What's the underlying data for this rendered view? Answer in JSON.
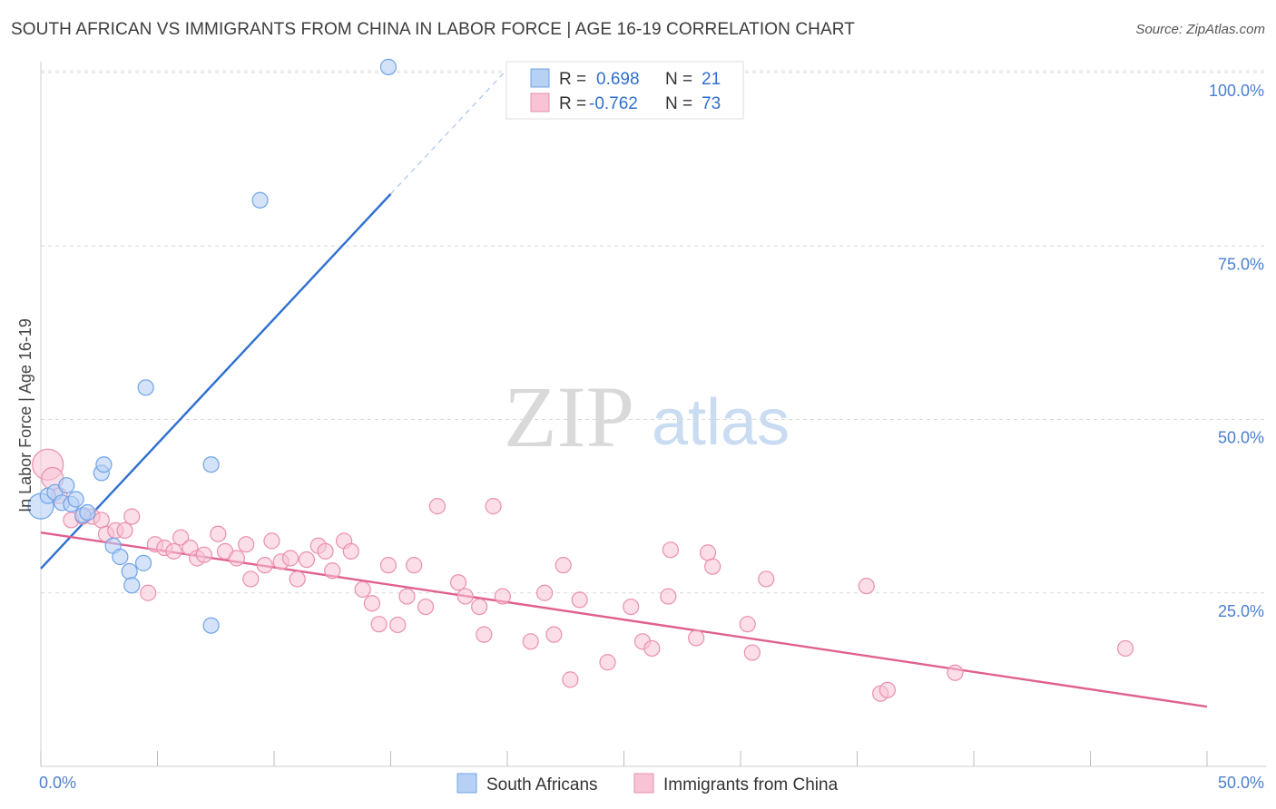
{
  "title": "SOUTH AFRICAN VS IMMIGRANTS FROM CHINA IN LABOR FORCE | AGE 16-19 CORRELATION CHART",
  "source": "Source: ZipAtlas.com",
  "watermark": {
    "zip": "ZIP",
    "atlas": "atlas"
  },
  "colors": {
    "blue": "#6fa3e8",
    "blue_fill": "#b7d1f5",
    "blue_line": "#2f6fd0",
    "pink": "#ea8fb0",
    "pink_fill": "#f7c3d5",
    "pink_line": "#e0608f"
  },
  "legend": {
    "series": [
      {
        "r_label": "R =",
        "r_value": "0.698",
        "n_label": "N =",
        "n_value": "21"
      },
      {
        "r_label": "R =",
        "r_value": "-0.762",
        "n_label": "N =",
        "n_value": "73"
      }
    ]
  },
  "chart_data": {
    "type": "scatter",
    "title": "SOUTH AFRICAN VS IMMIGRANTS FROM CHINA IN LABOR FORCE | AGE 16-19 CORRELATION CHART",
    "xlabel": "",
    "ylabel": "In Labor Force | Age 16-19",
    "xlim": [
      0,
      50
    ],
    "ylim": [
      0,
      100
    ],
    "x_ticks": [
      "0.0%",
      "50.0%"
    ],
    "y_ticks": [
      "100.0%",
      "75.0%",
      "50.0%",
      "25.0%"
    ],
    "y_tick_values": [
      100,
      75,
      50,
      25
    ],
    "series": [
      {
        "name": "South Africans",
        "color": "blue",
        "points": [
          [
            0.0,
            37.5
          ],
          [
            0.3,
            39.0
          ],
          [
            0.6,
            39.5
          ],
          [
            0.9,
            38.0
          ],
          [
            1.1,
            40.5
          ],
          [
            1.3,
            37.8
          ],
          [
            1.5,
            38.5
          ],
          [
            1.8,
            36.2
          ],
          [
            2.0,
            36.6
          ],
          [
            2.6,
            42.3
          ],
          [
            2.7,
            43.5
          ],
          [
            3.1,
            31.8
          ],
          [
            3.4,
            30.2
          ],
          [
            3.8,
            28.1
          ],
          [
            3.9,
            26.1
          ],
          [
            4.4,
            29.3
          ],
          [
            4.5,
            54.6
          ],
          [
            7.3,
            43.5
          ],
          [
            7.3,
            20.3
          ],
          [
            9.4,
            81.6
          ],
          [
            14.9,
            100.8
          ]
        ],
        "trend": {
          "x": [
            0.0,
            15.0
          ],
          "y": [
            28.5,
            82.5
          ],
          "dash_to": [
            20.0,
            100.5
          ]
        }
      },
      {
        "name": "Immigrants from China",
        "color": "pink",
        "points": [
          [
            0.3,
            43.5
          ],
          [
            0.5,
            41.5
          ],
          [
            0.8,
            39.0
          ],
          [
            1.3,
            35.5
          ],
          [
            1.8,
            36.0
          ],
          [
            2.2,
            36.0
          ],
          [
            2.6,
            35.5
          ],
          [
            2.8,
            33.5
          ],
          [
            3.2,
            34.0
          ],
          [
            3.6,
            34.0
          ],
          [
            3.9,
            36.0
          ],
          [
            4.6,
            25.0
          ],
          [
            4.9,
            32.0
          ],
          [
            5.3,
            31.5
          ],
          [
            5.7,
            31.0
          ],
          [
            6.0,
            33.0
          ],
          [
            6.4,
            31.5
          ],
          [
            6.7,
            30.0
          ],
          [
            7.0,
            30.5
          ],
          [
            7.6,
            33.5
          ],
          [
            7.9,
            31.0
          ],
          [
            8.4,
            30.0
          ],
          [
            8.8,
            32.0
          ],
          [
            9.0,
            27.0
          ],
          [
            9.6,
            29.0
          ],
          [
            9.9,
            32.5
          ],
          [
            10.3,
            29.5
          ],
          [
            10.7,
            30.0
          ],
          [
            11.0,
            27.0
          ],
          [
            11.4,
            29.8
          ],
          [
            11.9,
            31.8
          ],
          [
            12.2,
            31.0
          ],
          [
            12.5,
            28.2
          ],
          [
            13.0,
            32.5
          ],
          [
            13.3,
            31.0
          ],
          [
            13.8,
            25.5
          ],
          [
            14.2,
            23.5
          ],
          [
            14.5,
            20.5
          ],
          [
            14.9,
            29.0
          ],
          [
            15.3,
            20.4
          ],
          [
            15.7,
            24.5
          ],
          [
            16.0,
            29.0
          ],
          [
            16.5,
            23.0
          ],
          [
            17.0,
            37.5
          ],
          [
            17.9,
            26.5
          ],
          [
            18.2,
            24.5
          ],
          [
            18.8,
            23.0
          ],
          [
            19.0,
            19.0
          ],
          [
            19.4,
            37.5
          ],
          [
            19.8,
            24.5
          ],
          [
            21.0,
            18.0
          ],
          [
            21.6,
            25.0
          ],
          [
            22.0,
            19.0
          ],
          [
            22.4,
            29.0
          ],
          [
            22.7,
            12.5
          ],
          [
            23.1,
            24.0
          ],
          [
            24.3,
            15.0
          ],
          [
            25.3,
            23.0
          ],
          [
            25.8,
            18.0
          ],
          [
            26.2,
            17.0
          ],
          [
            26.9,
            24.5
          ],
          [
            27.0,
            31.2
          ],
          [
            28.1,
            18.5
          ],
          [
            28.6,
            30.8
          ],
          [
            28.8,
            28.8
          ],
          [
            30.3,
            20.5
          ],
          [
            30.5,
            16.4
          ],
          [
            31.1,
            27.0
          ],
          [
            35.4,
            26.0
          ],
          [
            36.0,
            10.5
          ],
          [
            36.3,
            11.0
          ],
          [
            39.2,
            13.5
          ],
          [
            46.5,
            17.0
          ]
        ],
        "trend": {
          "x": [
            0.0,
            50.0
          ],
          "y": [
            33.7,
            8.6
          ]
        }
      }
    ],
    "legend_entries": [
      "South Africans",
      "Immigrants from China"
    ]
  }
}
